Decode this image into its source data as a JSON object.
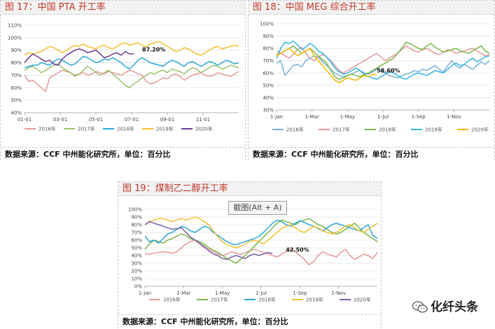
{
  "chart_data": [
    {
      "type": "line",
      "title": "图 17：中国 PTA 开工率",
      "source": "数据来源：CCF 中州能化研究所，单位：百分比",
      "x_ticks": [
        "01-01",
        "03-01",
        "05-01",
        "07-01",
        "09-01",
        "11-01"
      ],
      "y_ticks": [
        "40%",
        "50%",
        "60%",
        "70%",
        "80%",
        "90%",
        "100%",
        "110%"
      ],
      "ylim": [
        40,
        110
      ],
      "x_range": [
        1,
        52
      ],
      "x_tick_pos": [
        1,
        9.5,
        18,
        26.5,
        35,
        43.5
      ],
      "legend_placement": "bottom",
      "annotation": {
        "text": "87.20%",
        "x": 28,
        "y": 87.2
      },
      "series": [
        {
          "name": "2016年",
          "color": "#e69a9a",
          "x_start": 1,
          "values": [
            70,
            65,
            66,
            63,
            60,
            57,
            68,
            70,
            72,
            74,
            73,
            72,
            70,
            71,
            72,
            70,
            71,
            73,
            72,
            71,
            73,
            72,
            71,
            70,
            72,
            74,
            73,
            71,
            70,
            65,
            63,
            64,
            66,
            68,
            67,
            70,
            71,
            69,
            66,
            68,
            70,
            71,
            72,
            70,
            69,
            70,
            72,
            71,
            70,
            69,
            71,
            73
          ]
        },
        {
          "name": "2017年",
          "color": "#9ac36e",
          "x_start": 1,
          "values": [
            74,
            76,
            77,
            75,
            72,
            74,
            76,
            78,
            79,
            76,
            74,
            72,
            69,
            71,
            74,
            77,
            75,
            72,
            70,
            72,
            74,
            71,
            68,
            65,
            62,
            60,
            63,
            65,
            68,
            70,
            72,
            71,
            73,
            74,
            72,
            75,
            74,
            73,
            71,
            74,
            76,
            75,
            72,
            74,
            76,
            78,
            77,
            75,
            76,
            78,
            77,
            76
          ]
        },
        {
          "name": "2018年",
          "color": "#2aa8d8",
          "x_start": 1,
          "values": [
            76,
            77,
            78,
            78,
            80,
            79,
            78,
            81,
            83,
            82,
            80,
            78,
            79,
            82,
            85,
            84,
            82,
            80,
            81,
            83,
            82,
            84,
            82,
            80,
            77,
            75,
            78,
            82,
            84,
            82,
            80,
            79,
            78,
            77,
            80,
            82,
            81,
            79,
            77,
            80,
            81,
            79,
            77,
            79,
            81,
            80,
            78,
            80,
            82,
            81,
            79,
            80
          ]
        },
        {
          "name": "2019年",
          "color": "#f3c02f",
          "x_start": 1,
          "values": [
            86,
            88,
            87,
            88,
            89,
            91,
            93,
            92,
            90,
            88,
            90,
            92,
            94,
            93,
            95,
            93,
            92,
            91,
            93,
            94,
            92,
            91,
            93,
            95,
            96,
            94,
            95,
            96,
            94,
            93,
            95,
            96,
            97,
            95,
            93,
            91,
            89,
            90,
            92,
            91,
            89,
            87,
            86,
            88,
            90,
            92,
            93,
            91,
            92,
            93,
            94,
            93
          ]
        },
        {
          "name": "2020年",
          "color": "#6a3d8f",
          "x_start": 1,
          "values": [
            80,
            84,
            87,
            85,
            83,
            81,
            82,
            79,
            78,
            83,
            86,
            88,
            90,
            91,
            90,
            88,
            89,
            90,
            87,
            84,
            85,
            87,
            88,
            86,
            89,
            87,
            87.2
          ]
        }
      ]
    },
    {
      "type": "line",
      "title": "图 18：中国 MEG 综合开工率",
      "source": "数据来源：CCF 中州能化研究所，单位：百分比",
      "x_ticks": [
        "1-Jan",
        "1-Mar",
        "1-May",
        "1-Jul",
        "1-Sep",
        "1-Nov"
      ],
      "y_ticks": [
        "30%",
        "40%",
        "50%",
        "60%",
        "70%",
        "80%",
        "90%",
        "100%"
      ],
      "ylim": [
        30,
        100
      ],
      "x_range": [
        1,
        52
      ],
      "x_tick_pos": [
        1,
        9.5,
        18,
        26.5,
        35,
        43.5
      ],
      "legend_placement": "bottom",
      "annotation": {
        "text": "58.60%",
        "x": 24,
        "y": 58.6
      },
      "series": [
        {
          "name": "2016年",
          "color": "#7ab0d8",
          "x_start": 1,
          "values": [
            68,
            70,
            58,
            62,
            66,
            67,
            65,
            70,
            72,
            74,
            73,
            69,
            66,
            63,
            60,
            58,
            57,
            58,
            59,
            61,
            62,
            60,
            59,
            61,
            63,
            62,
            60,
            58,
            57,
            56,
            58,
            59,
            60,
            62,
            61,
            63,
            62,
            64,
            66,
            63,
            61,
            66,
            70,
            66,
            64,
            67,
            65,
            63,
            66,
            69,
            67,
            70
          ]
        },
        {
          "name": "2017年",
          "color": "#e69a9a",
          "x_start": 1,
          "values": [
            78,
            76,
            74,
            72,
            75,
            79,
            81,
            76,
            72,
            70,
            73,
            75,
            73,
            70,
            66,
            62,
            60,
            62,
            64,
            66,
            68,
            70,
            72,
            74,
            76,
            73,
            70,
            72,
            74,
            76,
            79,
            82,
            80,
            78,
            77,
            79,
            80,
            78,
            76,
            75,
            77,
            79,
            78,
            76,
            77,
            78,
            79,
            80,
            78,
            76,
            74,
            75
          ]
        },
        {
          "name": "2018年",
          "color": "#7ab648",
          "x_start": 1,
          "values": [
            75,
            76,
            78,
            80,
            82,
            79,
            76,
            78,
            80,
            77,
            74,
            71,
            68,
            62,
            57,
            55,
            56,
            58,
            59,
            58,
            57,
            59,
            60,
            62,
            64,
            66,
            68,
            70,
            72,
            76,
            80,
            85,
            84,
            82,
            80,
            79,
            82,
            84,
            81,
            79,
            77,
            78,
            79,
            80,
            78,
            77,
            76,
            78,
            80,
            82,
            78,
            76
          ]
        },
        {
          "name": "2019年",
          "color": "#33b5e5",
          "x_start": 1,
          "values": [
            72,
            80,
            85,
            84,
            86,
            83,
            79,
            81,
            84,
            82,
            78,
            76,
            73,
            69,
            64,
            61,
            59,
            60,
            62,
            64,
            62,
            59,
            57,
            56,
            55,
            57,
            59,
            61,
            60,
            58,
            56,
            55,
            57,
            59,
            60,
            59,
            58,
            60,
            62,
            61,
            60,
            63,
            66,
            68,
            66,
            67,
            70,
            72,
            69,
            71,
            73,
            74
          ]
        },
        {
          "name": "2020年",
          "color": "#f5b800",
          "x_start": 1,
          "values": [
            74,
            76,
            78,
            80,
            77,
            74,
            76,
            78,
            80,
            74,
            70,
            66,
            62,
            58,
            54,
            52,
            54,
            56,
            55,
            54,
            56,
            58,
            57,
            59,
            58.6
          ]
        }
      ]
    },
    {
      "type": "line",
      "title": "图 19：煤制乙二醇开工率",
      "source": "数据来源：CCF 中州能化研究所，单位：百分比",
      "x_ticks": [
        "1-Jan",
        "1-Mar",
        "1-May",
        "1-Jul",
        "1-Sep",
        "1-Nov"
      ],
      "y_ticks": [
        "0%",
        "10%",
        "20%",
        "30%",
        "40%",
        "50%",
        "60%",
        "70%",
        "80%",
        "90%",
        "100%"
      ],
      "ylim": [
        0,
        100
      ],
      "x_range": [
        1,
        52
      ],
      "x_tick_pos": [
        1,
        9.5,
        18,
        26.5,
        35,
        43.5
      ],
      "legend_placement": "bottom",
      "annotation": {
        "text": "42.50%",
        "x": 31,
        "y": 42.5
      },
      "series": [
        {
          "name": "2016年",
          "color": "#e69a9a",
          "x_start": 1,
          "values": [
            42,
            42,
            43,
            44,
            45,
            44,
            43,
            45,
            50,
            55,
            58,
            60,
            55,
            50,
            48,
            45,
            42,
            40,
            42,
            45,
            43,
            41,
            44,
            46,
            48,
            46,
            44,
            42,
            40,
            38,
            42,
            45,
            48,
            45,
            40,
            35,
            28,
            32,
            40,
            45,
            42,
            40,
            38,
            44,
            48,
            40,
            35,
            38,
            42,
            40,
            36,
            44
          ]
        },
        {
          "name": "2017年",
          "color": "#7ab648",
          "x_start": 1,
          "values": [
            48,
            55,
            60,
            58,
            56,
            60,
            62,
            65,
            68,
            66,
            62,
            60,
            58,
            55,
            50,
            47,
            44,
            40,
            36,
            33,
            30,
            35,
            40,
            46,
            52,
            58,
            64,
            70,
            76,
            82,
            86,
            84,
            82,
            80,
            84,
            86,
            88,
            84,
            80,
            78,
            74,
            70,
            68,
            70,
            74,
            78,
            82,
            76,
            70,
            66,
            62,
            58
          ]
        },
        {
          "name": "2018年",
          "color": "#2aa8d8",
          "x_start": 1,
          "values": [
            65,
            58,
            60,
            56,
            62,
            68,
            70,
            74,
            78,
            76,
            72,
            70,
            74,
            78,
            76,
            70,
            66,
            62,
            58,
            55,
            54,
            56,
            58,
            60,
            62,
            65,
            70,
            76,
            82,
            86,
            84,
            80,
            78,
            82,
            85,
            83,
            80,
            78,
            75,
            72,
            76,
            80,
            82,
            80,
            78,
            76,
            74,
            72,
            76,
            80,
            66,
            62
          ]
        },
        {
          "name": "2019年",
          "color": "#f3c02f",
          "x_start": 1,
          "values": [
            80,
            84,
            86,
            88,
            88,
            86,
            84,
            86,
            88,
            86,
            88,
            90,
            88,
            84,
            80,
            72,
            64,
            58,
            54,
            52,
            50,
            52,
            55,
            58,
            60,
            58,
            55,
            60,
            65,
            70,
            75,
            78,
            80,
            76,
            72,
            70,
            74,
            78,
            76,
            72,
            70,
            68,
            70,
            74,
            78,
            80,
            76,
            72,
            70,
            74,
            78,
            82
          ]
        },
        {
          "name": "2020年",
          "color": "#7b5ea7",
          "x_start": 1,
          "values": [
            80,
            84,
            82,
            80,
            78,
            76,
            74,
            75,
            76,
            70,
            64,
            60,
            56,
            52,
            46,
            42,
            40,
            36,
            35,
            38,
            40,
            38,
            36,
            40,
            42,
            40,
            42,
            44,
            42.5
          ]
        }
      ]
    }
  ],
  "overlay": {
    "screenshot_hint": "截图(Alt + A)"
  },
  "watermark": {
    "text": "化纤头条",
    "icon": "wechat-icon"
  }
}
